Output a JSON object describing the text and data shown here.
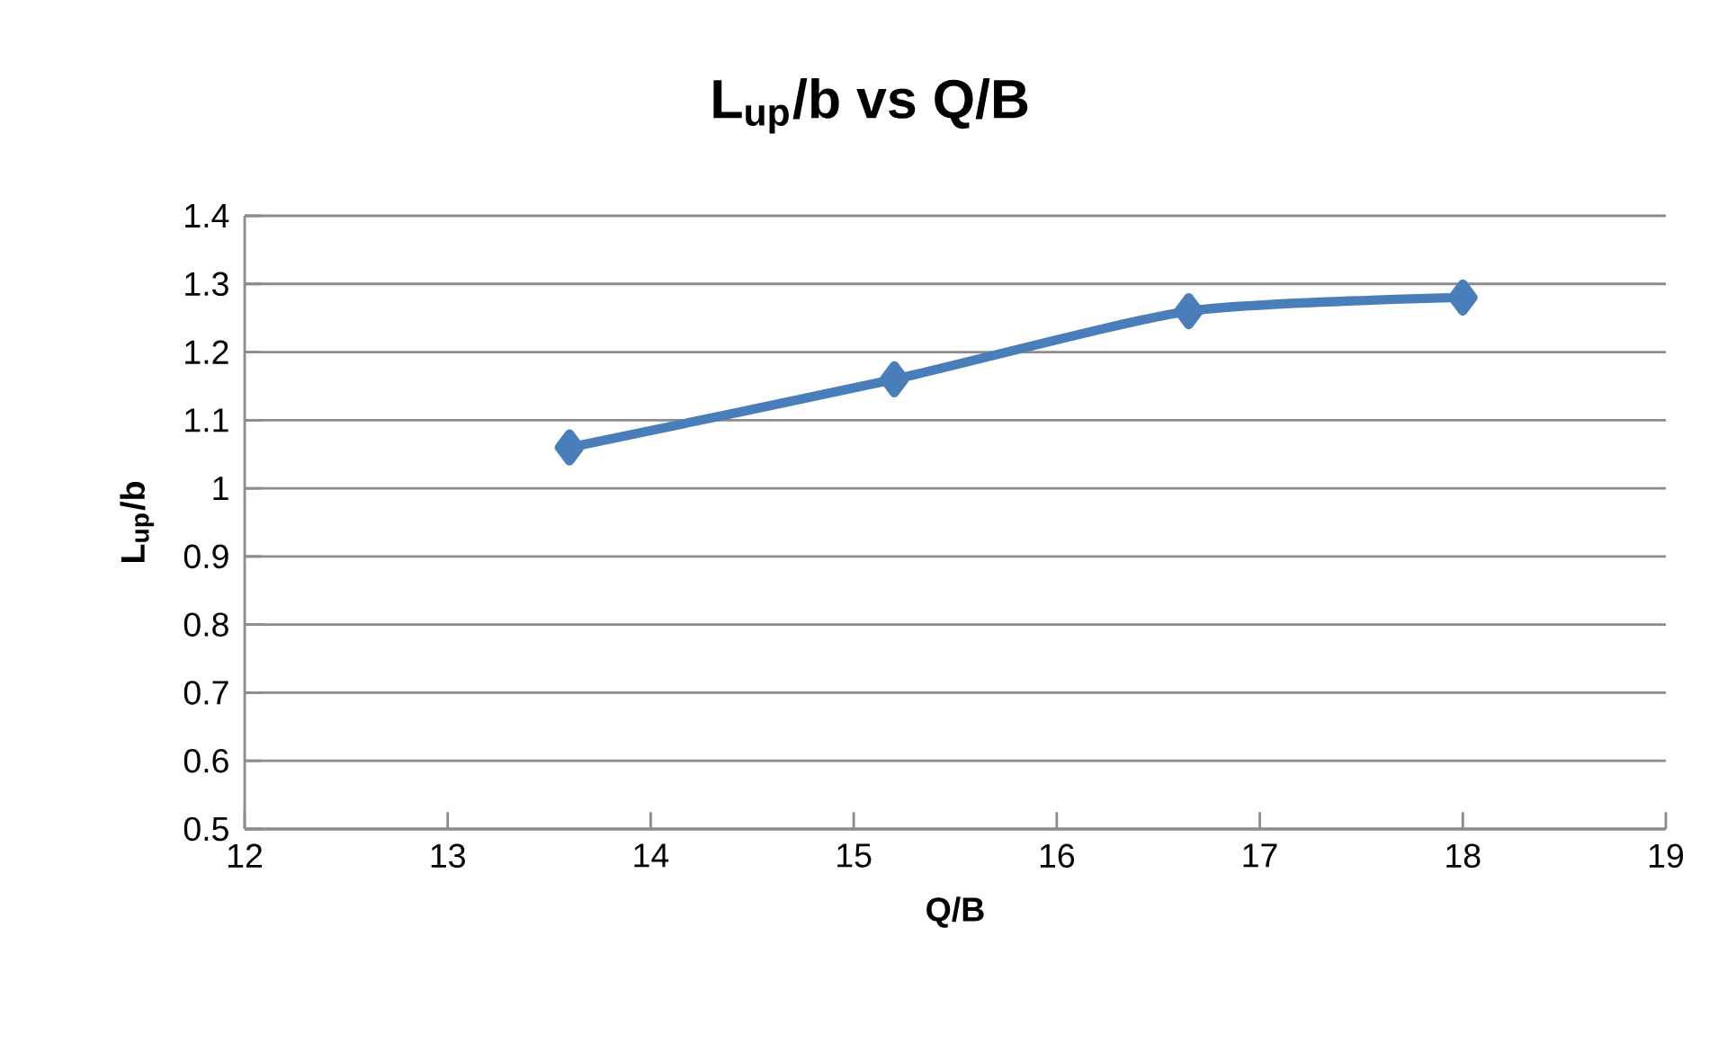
{
  "chart_data": {
    "type": "line",
    "title": "L$_{up}$/b vs Q/B",
    "xlabel": "Q/B",
    "ylabel": "L$_{up}$/b",
    "x": [
      13.6,
      15.2,
      16.65,
      18.0
    ],
    "series": [
      {
        "color": "#4a7ebb",
        "values": [
          1.06,
          1.16,
          1.26,
          1.28
        ]
      }
    ],
    "xlim": [
      12,
      19
    ],
    "xticks": [
      12,
      13,
      14,
      15,
      16,
      17,
      18,
      19
    ],
    "ylim": [
      0.5,
      1.4
    ],
    "yticks": [
      0.5,
      0.6,
      0.7,
      0.8,
      0.9,
      1,
      1.1,
      1.2,
      1.3,
      1.4
    ],
    "grid": "y",
    "marker": "diamond",
    "line_style": "solid"
  }
}
